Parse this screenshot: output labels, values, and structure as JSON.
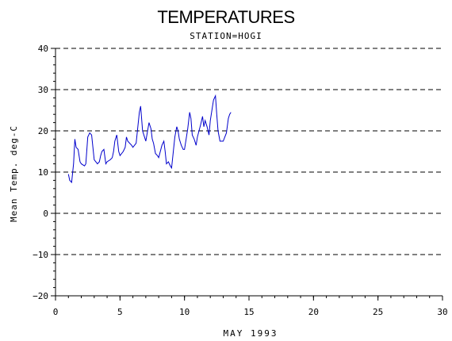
{
  "colors": {
    "background": "#ffffff",
    "axis": "#000000",
    "series": "#0000cc"
  },
  "chart_data": {
    "type": "line",
    "title": "TEMPERATURES",
    "subtitle": "STATION=HOGI",
    "xlabel": "MAY 1993",
    "ylabel": "Mean Temp. deg-C",
    "xlim": [
      0,
      30
    ],
    "ylim": [
      -20,
      40
    ],
    "x_ticks": [
      0,
      5,
      10,
      15,
      20,
      25,
      30
    ],
    "y_ticks": [
      -20,
      -10,
      0,
      10,
      20,
      30,
      40
    ],
    "x_minor_step": 1,
    "y_minor_step": 2,
    "grid": "horizontal dashed at major y ticks",
    "legend": "none",
    "series": [
      {
        "x": [
          1.0,
          1.1,
          1.25,
          1.4,
          1.5,
          1.6,
          1.75,
          1.9,
          2.0,
          2.25,
          2.35,
          2.5,
          2.65,
          2.8,
          2.9,
          3.0,
          3.25,
          3.4,
          3.5,
          3.6,
          3.75,
          3.9,
          4.0,
          4.25,
          4.4,
          4.5,
          4.6,
          4.75,
          4.9,
          5.0,
          5.25,
          5.4,
          5.5,
          5.6,
          5.75,
          5.9,
          6.0,
          6.25,
          6.4,
          6.5,
          6.6,
          6.75,
          6.9,
          7.0,
          7.25,
          7.4,
          7.5,
          7.6,
          7.75,
          7.9,
          8.0,
          8.25,
          8.4,
          8.5,
          8.6,
          8.75,
          8.9,
          9.0,
          9.25,
          9.4,
          9.5,
          9.6,
          9.75,
          9.9,
          10.0,
          10.25,
          10.4,
          10.5,
          10.6,
          10.75,
          10.9,
          11.0,
          11.25,
          11.4,
          11.5,
          11.6,
          11.75,
          11.9,
          12.0,
          12.25,
          12.4,
          12.5,
          12.6,
          12.75,
          12.9,
          13.0,
          13.25,
          13.4,
          13.5,
          13.6
        ],
        "y": [
          9.5,
          8.0,
          7.5,
          12.0,
          18.0,
          16.0,
          15.5,
          12.5,
          12.0,
          11.5,
          12.0,
          18.5,
          19.5,
          19.0,
          16.0,
          13.0,
          12.0,
          12.5,
          14.0,
          15.0,
          15.5,
          12.0,
          12.5,
          13.0,
          13.5,
          15.0,
          17.5,
          19.0,
          15.0,
          14.0,
          15.0,
          16.0,
          18.5,
          17.5,
          17.0,
          16.5,
          16.0,
          17.0,
          21.5,
          24.5,
          26.0,
          20.0,
          18.5,
          17.5,
          22.0,
          20.5,
          18.0,
          17.0,
          14.5,
          14.0,
          13.5,
          16.5,
          17.5,
          15.0,
          12.0,
          12.5,
          11.5,
          11.0,
          18.5,
          21.0,
          20.0,
          18.0,
          16.5,
          15.5,
          15.5,
          20.5,
          24.5,
          23.0,
          19.0,
          18.0,
          16.5,
          18.5,
          21.5,
          23.5,
          21.0,
          22.5,
          21.0,
          19.0,
          22.5,
          27.5,
          28.5,
          24.0,
          20.0,
          17.5,
          17.5,
          17.5,
          19.5,
          23.0,
          24.0,
          24.5
        ]
      }
    ]
  }
}
